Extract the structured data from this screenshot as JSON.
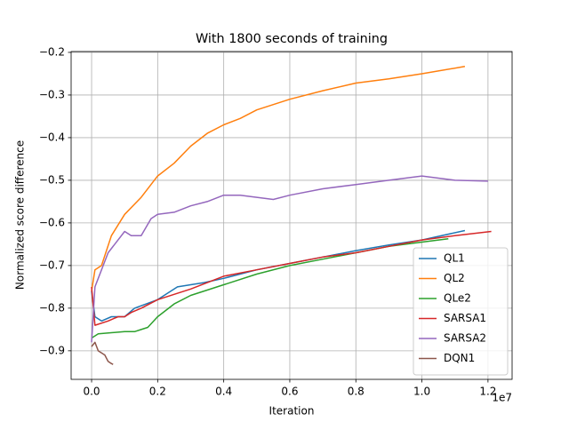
{
  "chart_data": {
    "type": "line",
    "title": "With 1800 seconds of training",
    "x_label": "Iteration",
    "y_label": "Normalized score difference",
    "x_offset_label": "1e7",
    "xlim": [
      -0.062,
      1.273
    ],
    "ylim": [
      -0.967,
      -0.198
    ],
    "xticks": [
      {
        "value": 0,
        "label": "0.0"
      },
      0.2,
      0.4,
      0.6,
      0.8,
      {
        "value": 1,
        "label": "1.0"
      },
      1.2
    ],
    "yticks": [
      {
        "value": -0.9,
        "label": "−0.9"
      },
      {
        "value": -0.8,
        "label": "−0.8"
      },
      {
        "value": -0.7,
        "label": "−0.7"
      },
      {
        "value": -0.6,
        "label": "−0.6"
      },
      {
        "value": -0.5,
        "label": "−0.5"
      },
      {
        "value": -0.4,
        "label": "−0.4"
      },
      {
        "value": -0.3,
        "label": "−0.3"
      },
      {
        "value": -0.2,
        "label": "−0.2"
      }
    ],
    "grid": true,
    "legend_position": "lower right",
    "series": [
      {
        "name": "QL1",
        "color": "#1f77b4",
        "x": [
          0,
          0.01,
          0.03,
          0.06,
          0.1,
          0.13,
          0.2,
          0.26,
          0.34,
          0.4,
          0.5,
          0.6,
          0.7,
          0.8,
          0.9,
          1.0,
          1.13
        ],
        "values": [
          -0.76,
          -0.82,
          -0.83,
          -0.82,
          -0.82,
          -0.8,
          -0.78,
          -0.75,
          -0.74,
          -0.73,
          -0.71,
          -0.695,
          -0.68,
          -0.665,
          -0.652,
          -0.64,
          -0.618
        ]
      },
      {
        "name": "QL2",
        "color": "#ff7f0e",
        "x": [
          0,
          0.01,
          0.03,
          0.06,
          0.1,
          0.15,
          0.2,
          0.25,
          0.3,
          0.35,
          0.4,
          0.45,
          0.5,
          0.6,
          0.7,
          0.8,
          0.9,
          1.0,
          1.13
        ],
        "values": [
          -0.76,
          -0.71,
          -0.7,
          -0.63,
          -0.58,
          -0.54,
          -0.49,
          -0.46,
          -0.42,
          -0.39,
          -0.37,
          -0.355,
          -0.335,
          -0.31,
          -0.29,
          -0.272,
          -0.262,
          -0.25,
          -0.233
        ]
      },
      {
        "name": "QLe2",
        "color": "#2ca02c",
        "x": [
          0,
          0.02,
          0.1,
          0.13,
          0.15,
          0.17,
          0.2,
          0.25,
          0.3,
          0.4,
          0.5,
          0.6,
          0.7,
          0.8,
          0.9,
          1.0,
          1.08
        ],
        "values": [
          -0.87,
          -0.86,
          -0.855,
          -0.855,
          -0.85,
          -0.845,
          -0.82,
          -0.79,
          -0.77,
          -0.745,
          -0.72,
          -0.7,
          -0.685,
          -0.67,
          -0.655,
          -0.645,
          -0.637
        ]
      },
      {
        "name": "SARSA1",
        "color": "#d62728",
        "x": [
          0,
          0.01,
          0.05,
          0.08,
          0.1,
          0.12,
          0.15,
          0.2,
          0.3,
          0.4,
          0.5,
          0.6,
          0.7,
          0.8,
          0.9,
          1.0,
          1.1,
          1.21
        ],
        "values": [
          -0.75,
          -0.84,
          -0.83,
          -0.82,
          -0.82,
          -0.81,
          -0.8,
          -0.78,
          -0.755,
          -0.725,
          -0.71,
          -0.695,
          -0.68,
          -0.67,
          -0.655,
          -0.64,
          -0.63,
          -0.62
        ]
      },
      {
        "name": "SARSA2",
        "color": "#9467bd",
        "x": [
          0,
          0.01,
          0.02,
          0.05,
          0.08,
          0.1,
          0.12,
          0.15,
          0.18,
          0.2,
          0.25,
          0.3,
          0.35,
          0.4,
          0.45,
          0.5,
          0.55,
          0.6,
          0.7,
          0.8,
          0.9,
          1.0,
          1.05,
          1.1,
          1.2
        ],
        "values": [
          -0.88,
          -0.75,
          -0.73,
          -0.67,
          -0.64,
          -0.62,
          -0.63,
          -0.63,
          -0.59,
          -0.58,
          -0.575,
          -0.56,
          -0.55,
          -0.535,
          -0.535,
          -0.54,
          -0.545,
          -0.535,
          -0.52,
          -0.51,
          -0.5,
          -0.49,
          -0.495,
          -0.5,
          -0.502
        ]
      },
      {
        "name": "DQN1",
        "color": "#8c564b",
        "x": [
          0,
          0.01,
          0.02,
          0.04,
          0.05,
          0.06,
          0.065
        ],
        "values": [
          -0.89,
          -0.88,
          -0.9,
          -0.91,
          -0.925,
          -0.93,
          -0.932
        ]
      }
    ]
  }
}
